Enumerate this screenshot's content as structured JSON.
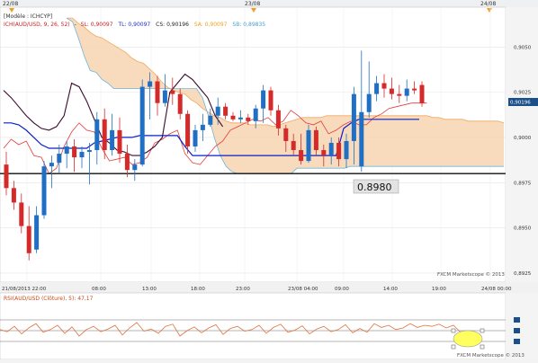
{
  "window": {
    "top_dates": [
      "22/08",
      "23/08",
      "24/08"
    ],
    "model_label": "[Modèle : ICHCYP]",
    "watermark_main": "FXCM Marketscope © 2013",
    "watermark_sub": "FXCM Marketscope © 2013",
    "price_annotation": "0.8980"
  },
  "chart_data": [
    {
      "type": "candlestick",
      "indicator_legend": {
        "name": "ICH(AUD/USD, 9, 26, 52)",
        "tl": "TL: 0,90097",
        "sl": "SL: 0,90097",
        "cs": "CS: 0,90196",
        "sa": "SA: 0,90097",
        "sb": "SB: 0,89835"
      },
      "y_ticks": [
        "0,9050",
        "0,9025",
        "0,9000",
        "0,8975",
        "0,8950",
        "0,8925"
      ],
      "y_tick_values": [
        0.905,
        0.9025,
        0.9,
        0.8975,
        0.895,
        0.8925
      ],
      "current_price": "0,90196",
      "x_ticks": [
        "21/08/2013 22:00",
        "08:00",
        "13:00",
        "18:00",
        "23:00",
        "23/08 04:00",
        "09:00",
        "14:00",
        "19:00",
        "24/08 00:00"
      ],
      "ylim": [
        0.892,
        0.9072
      ],
      "horizontal_level": 0.898,
      "candles": [
        {
          "o": 0.8985,
          "h": 0.8992,
          "l": 0.8968,
          "c": 0.8972
        },
        {
          "o": 0.8972,
          "h": 0.8976,
          "l": 0.896,
          "c": 0.8964
        },
        {
          "o": 0.8964,
          "h": 0.8969,
          "l": 0.8947,
          "c": 0.8951
        },
        {
          "o": 0.8951,
          "h": 0.8962,
          "l": 0.8932,
          "c": 0.8936
        },
        {
          "o": 0.8938,
          "h": 0.8962,
          "l": 0.8936,
          "c": 0.8957
        },
        {
          "o": 0.8957,
          "h": 0.8987,
          "l": 0.8955,
          "c": 0.8984
        },
        {
          "o": 0.8984,
          "h": 0.899,
          "l": 0.8972,
          "c": 0.8986
        },
        {
          "o": 0.8986,
          "h": 0.8996,
          "l": 0.898,
          "c": 0.8991
        },
        {
          "o": 0.8991,
          "h": 0.8998,
          "l": 0.8983,
          "c": 0.8995
        },
        {
          "o": 0.8995,
          "h": 0.8999,
          "l": 0.8981,
          "c": 0.8989
        },
        {
          "o": 0.8989,
          "h": 0.8995,
          "l": 0.8983,
          "c": 0.8992
        },
        {
          "o": 0.8992,
          "h": 0.8997,
          "l": 0.8974,
          "c": 0.8993
        },
        {
          "o": 0.8993,
          "h": 0.9014,
          "l": 0.8985,
          "c": 0.901
        },
        {
          "o": 0.901,
          "h": 0.9016,
          "l": 0.8988,
          "c": 0.8993
        },
        {
          "o": 0.8993,
          "h": 0.9013,
          "l": 0.899,
          "c": 0.9004
        },
        {
          "o": 0.9004,
          "h": 0.9011,
          "l": 0.8986,
          "c": 0.8991
        },
        {
          "o": 0.8991,
          "h": 0.8996,
          "l": 0.8978,
          "c": 0.8982
        },
        {
          "o": 0.8982,
          "h": 0.8988,
          "l": 0.8976,
          "c": 0.8985
        },
        {
          "o": 0.8985,
          "h": 0.9032,
          "l": 0.8984,
          "c": 0.9028
        },
        {
          "o": 0.9028,
          "h": 0.9036,
          "l": 0.901,
          "c": 0.9031
        },
        {
          "o": 0.9031,
          "h": 0.9034,
          "l": 0.9012,
          "c": 0.9019
        },
        {
          "o": 0.9019,
          "h": 0.9035,
          "l": 0.9017,
          "c": 0.9026
        },
        {
          "o": 0.9026,
          "h": 0.9033,
          "l": 0.9018,
          "c": 0.9024
        },
        {
          "o": 0.9024,
          "h": 0.9027,
          "l": 0.901,
          "c": 0.9013
        },
        {
          "o": 0.9013,
          "h": 0.9015,
          "l": 0.8991,
          "c": 0.8995
        },
        {
          "o": 0.8995,
          "h": 0.9007,
          "l": 0.8992,
          "c": 0.9004
        },
        {
          "o": 0.9004,
          "h": 0.9013,
          "l": 0.8998,
          "c": 0.9007
        },
        {
          "o": 0.9007,
          "h": 0.9016,
          "l": 0.9006,
          "c": 0.9012
        },
        {
          "o": 0.9012,
          "h": 0.9022,
          "l": 0.9007,
          "c": 0.9017
        },
        {
          "o": 0.9017,
          "h": 0.9019,
          "l": 0.901,
          "c": 0.9012
        },
        {
          "o": 0.9012,
          "h": 0.9014,
          "l": 0.9009,
          "c": 0.901
        },
        {
          "o": 0.901,
          "h": 0.9015,
          "l": 0.9008,
          "c": 0.9011
        },
        {
          "o": 0.9011,
          "h": 0.9013,
          "l": 0.9007,
          "c": 0.9009
        },
        {
          "o": 0.9009,
          "h": 0.9018,
          "l": 0.9005,
          "c": 0.9016
        },
        {
          "o": 0.9016,
          "h": 0.9029,
          "l": 0.9008,
          "c": 0.9026
        },
        {
          "o": 0.9026,
          "h": 0.9028,
          "l": 0.9012,
          "c": 0.9015
        },
        {
          "o": 0.9015,
          "h": 0.9018,
          "l": 0.9001,
          "c": 0.9005
        },
        {
          "o": 0.9005,
          "h": 0.9007,
          "l": 0.8992,
          "c": 0.8998
        },
        {
          "o": 0.8998,
          "h": 0.9002,
          "l": 0.899,
          "c": 0.8993
        },
        {
          "o": 0.8993,
          "h": 0.9002,
          "l": 0.8985,
          "c": 0.8987
        },
        {
          "o": 0.8987,
          "h": 0.9007,
          "l": 0.8986,
          "c": 0.9004
        },
        {
          "o": 0.9004,
          "h": 0.9006,
          "l": 0.899,
          "c": 0.8993
        },
        {
          "o": 0.8993,
          "h": 0.8996,
          "l": 0.8984,
          "c": 0.899
        },
        {
          "o": 0.899,
          "h": 0.9,
          "l": 0.8985,
          "c": 0.8997
        },
        {
          "o": 0.8997,
          "h": 0.9,
          "l": 0.8984,
          "c": 0.8988
        },
        {
          "o": 0.8988,
          "h": 0.9002,
          "l": 0.8983,
          "c": 0.8998
        },
        {
          "o": 0.8998,
          "h": 0.9028,
          "l": 0.8985,
          "c": 0.9024
        },
        {
          "o": 0.8984,
          "h": 0.9048,
          "l": 0.8981,
          "c": 0.9014
        },
        {
          "o": 0.9014,
          "h": 0.9042,
          "l": 0.9011,
          "c": 0.9024
        },
        {
          "o": 0.9024,
          "h": 0.9034,
          "l": 0.902,
          "c": 0.903
        },
        {
          "o": 0.903,
          "h": 0.9035,
          "l": 0.9022,
          "c": 0.9027
        },
        {
          "o": 0.9027,
          "h": 0.9033,
          "l": 0.9021,
          "c": 0.9024
        },
        {
          "o": 0.9024,
          "h": 0.9029,
          "l": 0.9019,
          "c": 0.9023
        },
        {
          "o": 0.9023,
          "h": 0.9032,
          "l": 0.902,
          "c": 0.9027
        },
        {
          "o": 0.9027,
          "h": 0.9031,
          "l": 0.9024,
          "c": 0.9026
        },
        {
          "o": 0.9029,
          "h": 0.9031,
          "l": 0.9017,
          "c": 0.9019
        }
      ],
      "tenkan_sen": [
        0.9026,
        0.9022,
        0.9017,
        0.9012,
        0.9008,
        0.9005,
        0.9004,
        0.9006,
        0.9012,
        0.903,
        0.9028,
        0.902,
        0.901,
        0.9,
        0.8997,
        0.8993,
        0.8992,
        0.899,
        0.899,
        0.8992,
        0.8995,
        0.9,
        0.9025,
        0.903,
        0.9035,
        0.9032,
        0.9027,
        0.9022,
        0.9012,
        0.9006
      ],
      "kijun_sen": [
        0.9008,
        0.9008,
        0.9007,
        0.9004,
        0.9,
        0.8996,
        0.8994,
        0.8994,
        0.8994,
        0.8994,
        0.8994,
        0.8994,
        0.8997,
        0.8998,
        0.8999,
        0.9,
        0.9,
        0.9,
        0.9001,
        0.9001,
        0.9001,
        0.9001,
        0.9001,
        0.9001,
        0.8995,
        0.899,
        0.899,
        0.899,
        0.899,
        0.899,
        0.899,
        0.899,
        0.899,
        0.899,
        0.899,
        0.899,
        0.899,
        0.899,
        0.899,
        0.899,
        0.899,
        0.899,
        0.899,
        0.899,
        0.899,
        0.9005,
        0.9008,
        0.901,
        0.901,
        0.901,
        0.901,
        0.901,
        0.901,
        0.901,
        0.901,
        0.901
      ],
      "chikou_span": [
        0.8994,
        0.8999,
        0.8996,
        0.8998,
        0.899,
        0.8989,
        0.898,
        0.8983,
        0.8995,
        0.9003,
        0.9008,
        0.9004,
        0.9003,
        0.8994,
        0.8987,
        0.8988,
        0.8989,
        0.8985,
        0.8986,
        0.8989,
        0.8997,
        0.8999,
        0.9002,
        0.9004,
        0.8991,
        0.8986,
        0.8985,
        0.899,
        0.8995,
        0.8998,
        0.9004,
        0.9006,
        0.9008,
        0.901,
        0.9009,
        0.9011,
        0.9007,
        0.9009,
        0.9015,
        0.9012,
        0.9008,
        0.9007,
        0.9009,
        0.9002,
        0.9004,
        0.9007,
        0.9009,
        0.9007,
        0.9007,
        0.9011,
        0.9013,
        0.9016,
        0.9017,
        0.9018,
        0.9019,
        0.9019,
        0.9019
      ],
      "senkou_a": [
        0.9066,
        0.9066,
        0.9063,
        0.9061,
        0.9058,
        0.9056,
        0.9055,
        0.9053,
        0.9051,
        0.9049,
        0.9047,
        0.9044,
        0.9042,
        0.9041,
        0.9038,
        0.9035,
        0.9031,
        0.9028,
        0.9026,
        0.9025,
        0.9024,
        0.9021,
        0.9019,
        0.9016,
        0.9014,
        0.9012,
        0.9011,
        0.9009,
        0.9008,
        0.9008,
        0.9008,
        0.9007,
        0.9007,
        0.9007,
        0.9007,
        0.9006,
        0.9007,
        0.9008,
        0.9009,
        0.901,
        0.9011,
        0.9011,
        0.9011,
        0.9011,
        0.9012,
        0.9012,
        0.9012,
        0.9012,
        0.9012,
        0.9012,
        0.9012,
        0.9012,
        0.9012,
        0.9012,
        0.9012,
        0.9012,
        0.9012,
        0.9012,
        0.9012,
        0.9012,
        0.9012,
        0.9012,
        0.9011,
        0.9011,
        0.901,
        0.901,
        0.901,
        0.901,
        0.9009,
        0.9009,
        0.9009,
        0.9009,
        0.9009,
        0.9009,
        0.9008
      ],
      "senkou_b": [
        0.9066,
        0.9064,
        0.9055,
        0.9045,
        0.9037,
        0.9036,
        0.9032,
        0.903,
        0.9027,
        0.9027,
        0.9027,
        0.9027,
        0.9027,
        0.9027,
        0.9027,
        0.9027,
        0.9027,
        0.9027,
        0.9027,
        0.9027,
        0.9027,
        0.9027,
        0.9027,
        0.9022,
        0.9012,
        0.9,
        0.899,
        0.8984,
        0.8981,
        0.898,
        0.898,
        0.898,
        0.898,
        0.898,
        0.898,
        0.898,
        0.898,
        0.898,
        0.898,
        0.8983,
        0.8983,
        0.8983,
        0.8983,
        0.8983,
        0.8983,
        0.8983,
        0.8983,
        0.8983,
        0.8984,
        0.8984,
        0.8984,
        0.8984,
        0.8984,
        0.8984,
        0.8984,
        0.8984,
        0.8984,
        0.8984,
        0.8984,
        0.8984,
        0.8984,
        0.8984,
        0.8984,
        0.8984,
        0.8984,
        0.8984,
        0.8984,
        0.8984,
        0.8984,
        0.8984,
        0.8984,
        0.8984,
        0.8984,
        0.8984,
        0.8984
      ],
      "colors": {
        "bull_candle": "#1f6fc5",
        "bear_candle": "#d42a2a",
        "tenkan_sen": "#3c0a2e",
        "kijun_sen": "#0b1fc8",
        "chikou_span": "#e33a3a",
        "cloud_fill": "#f7d3b0",
        "senkou_a": "#f0a860",
        "senkou_b": "#f0a860",
        "senkou_b_upper": "#6fb6d6",
        "level_line": "#111111"
      }
    },
    {
      "type": "line",
      "legend": "RSI(AUD/USD (Clôture), 5): 47,17",
      "ylim": [
        0,
        100
      ],
      "levels": [
        70,
        50,
        30
      ],
      "values": [
        52,
        48,
        58,
        44,
        55,
        63,
        47,
        52,
        60,
        45,
        57,
        40,
        52,
        58,
        48,
        53,
        60,
        42,
        55,
        65,
        49,
        53,
        45,
        58,
        62,
        40,
        50,
        57,
        46,
        55,
        61,
        43,
        54,
        58,
        49,
        52,
        60,
        45,
        56,
        62,
        47,
        51,
        59,
        44,
        53,
        58,
        48,
        52,
        61,
        46,
        54,
        47,
        63,
        56,
        60,
        52,
        55,
        63,
        56,
        60,
        58,
        62,
        55,
        60,
        47
      ],
      "colors": {
        "line": "#e0703a",
        "levels": "#6a6a6a"
      }
    }
  ]
}
